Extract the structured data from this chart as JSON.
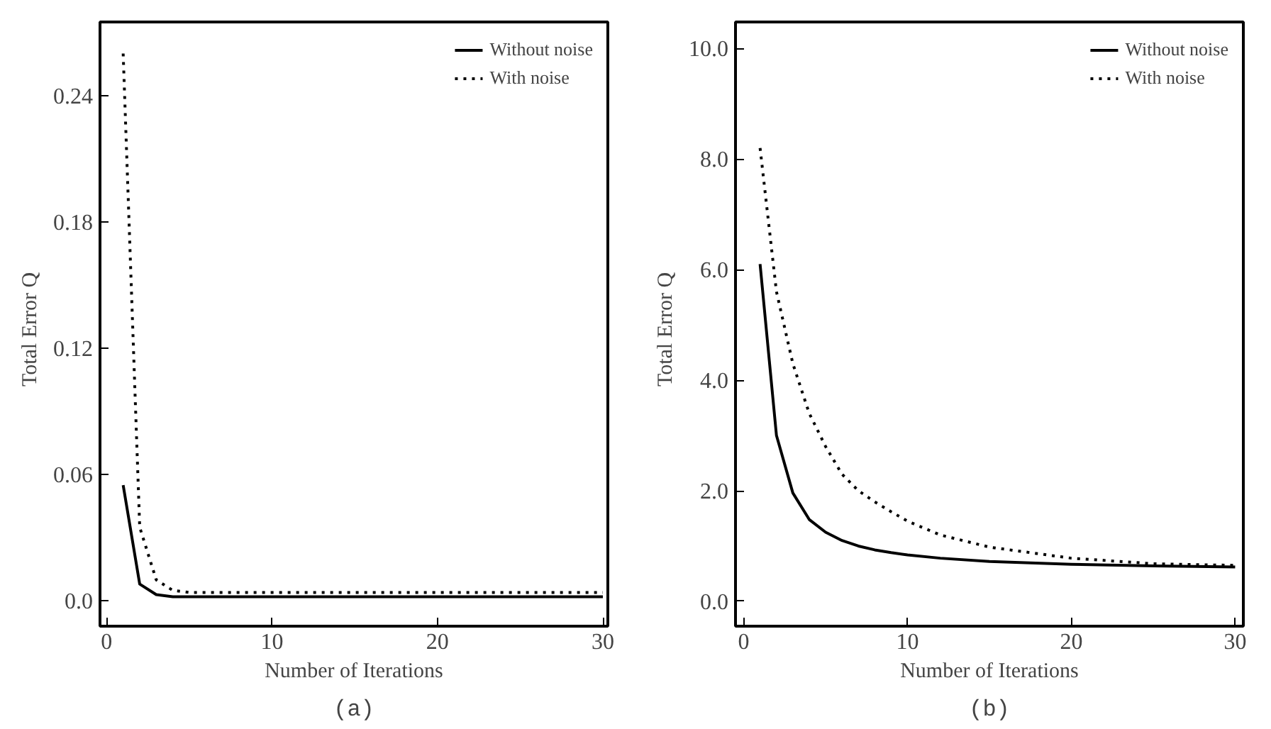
{
  "chart_data": [
    {
      "type": "line",
      "xlabel": "Number of Iterations",
      "ylabel": "Total  Error  Q",
      "annotations": [
        "(a)"
      ],
      "xlim": [
        -0.4,
        30.3
      ],
      "ylim": [
        -0.012,
        0.275
      ],
      "xticks": [
        0,
        10,
        20,
        30
      ],
      "yticks": [
        {
          "value": 0,
          "label": "0.0"
        },
        0.06,
        0.12,
        0.18,
        0.24
      ],
      "legend": "top right",
      "grid": false,
      "x": [
        1,
        2,
        3,
        4,
        5,
        6,
        8,
        10,
        15,
        20,
        25,
        30
      ],
      "series": [
        {
          "name": "Without noise",
          "color": "#000000",
          "line_style": "solid",
          "values": [
            0.055,
            0.008,
            0.003,
            0.002,
            0.002,
            0.002,
            0.002,
            0.002,
            0.002,
            0.002,
            0.002,
            0.002
          ]
        },
        {
          "name": "With noise",
          "color": "#000000",
          "line_style": "dotted",
          "values": [
            0.26,
            0.035,
            0.01,
            0.005,
            0.004,
            0.004,
            0.004,
            0.004,
            0.004,
            0.004,
            0.004,
            0.004
          ]
        }
      ]
    },
    {
      "type": "line",
      "xlabel": "Number of Iterations",
      "ylabel": "Total  Error  Q",
      "annotations": [
        "(b)"
      ],
      "xlim": [
        -0.5,
        30.5
      ],
      "ylim": [
        -0.45,
        10.48
      ],
      "xticks": [
        0,
        10,
        20,
        30
      ],
      "yticks": [
        {
          "value": 0,
          "label": "0.0"
        },
        {
          "value": 2,
          "label": "2.0"
        },
        {
          "value": 4,
          "label": "4.0"
        },
        {
          "value": 6,
          "label": "6.0"
        },
        {
          "value": 8,
          "label": "8.0"
        },
        {
          "value": 10,
          "label": "10.0"
        }
      ],
      "legend": "top right",
      "grid": false,
      "x": [
        1,
        2,
        3,
        4,
        5,
        6,
        7,
        8,
        9,
        10,
        12,
        15,
        20,
        25,
        30
      ],
      "series": [
        {
          "name": "Without noise",
          "color": "#000000",
          "line_style": "solid",
          "values": [
            6.1,
            3.0,
            1.96,
            1.48,
            1.25,
            1.1,
            1.0,
            0.93,
            0.88,
            0.84,
            0.78,
            0.72,
            0.67,
            0.64,
            0.62
          ]
        },
        {
          "name": "With noise",
          "color": "#000000",
          "line_style": "dotted",
          "values": [
            8.2,
            5.6,
            4.3,
            3.4,
            2.8,
            2.3,
            2.0,
            1.8,
            1.62,
            1.45,
            1.2,
            0.98,
            0.78,
            0.68,
            0.65
          ]
        }
      ]
    }
  ]
}
